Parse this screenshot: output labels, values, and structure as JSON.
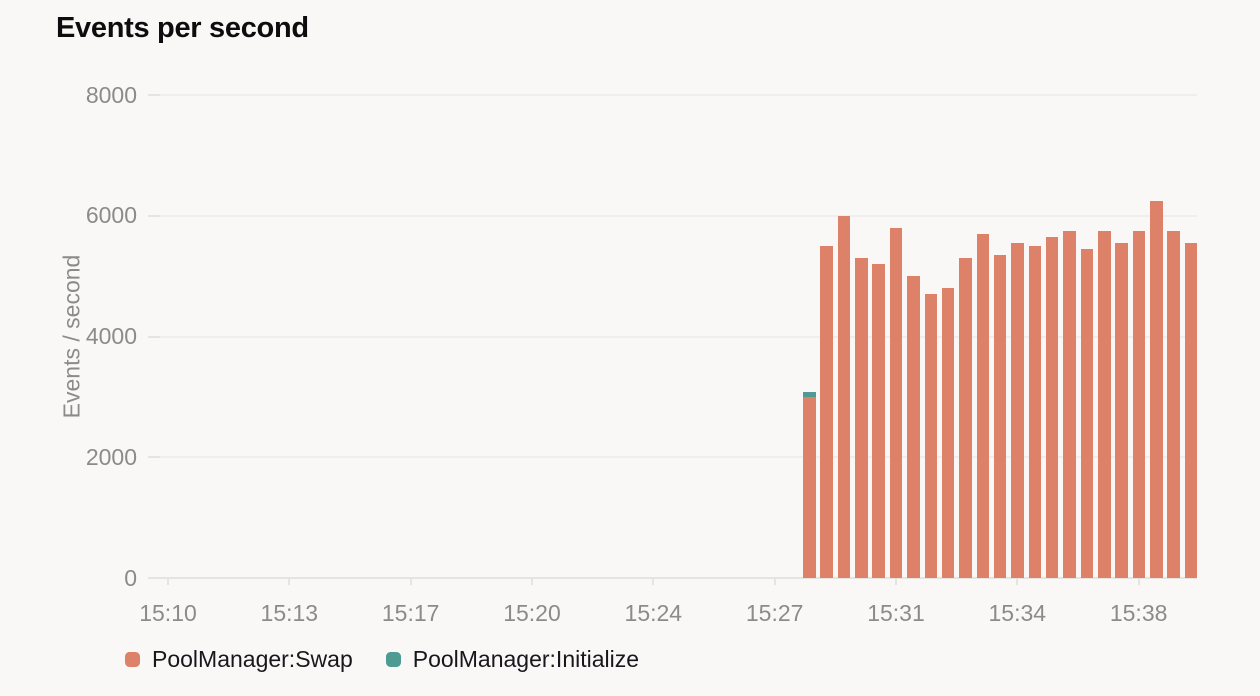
{
  "title": "Events per second",
  "colors": {
    "background": "#f9f8f6",
    "swap": "#dd8168",
    "initialize": "#4f9a93",
    "gridline": "#f0eeec",
    "axis": "#e7e4e0",
    "tick_text": "#8d8b88",
    "title_text": "#0d0d0f",
    "legend_text": "#17171c"
  },
  "legend": {
    "items": [
      {
        "label": "PoolManager:Swap",
        "color": "#dd8168"
      },
      {
        "label": "PoolManager:Initialize",
        "color": "#4f9a93"
      }
    ]
  },
  "chart_data": {
    "type": "bar",
    "stacked": true,
    "title": "Events per second",
    "xlabel": "",
    "ylabel": "Events / second",
    "ylim": [
      0,
      8000
    ],
    "y_ticks": [
      0,
      2000,
      4000,
      6000,
      8000
    ],
    "x_tick_labels": [
      "15:10",
      "15:13",
      "15:17",
      "15:20",
      "15:24",
      "15:27",
      "15:31",
      "15:34",
      "15:38"
    ],
    "grid": true,
    "legend_position": "bottom",
    "data_note": "bars begin just after the 15:27 tick and continue to the right edge of the plot",
    "series": [
      {
        "name": "PoolManager:Swap",
        "color": "#dd8168",
        "values": [
          3000,
          5500,
          6000,
          5300,
          5200,
          5800,
          5000,
          4700,
          4800,
          5300,
          5700,
          5350,
          5550,
          5500,
          5650,
          5750,
          5450,
          5750,
          5550,
          5750,
          6250,
          5750,
          5550
        ]
      },
      {
        "name": "PoolManager:Initialize",
        "color": "#4f9a93",
        "values": [
          75,
          0,
          0,
          0,
          0,
          0,
          0,
          0,
          0,
          0,
          0,
          0,
          0,
          0,
          0,
          0,
          0,
          0,
          0,
          0,
          0,
          0,
          0
        ]
      }
    ]
  }
}
